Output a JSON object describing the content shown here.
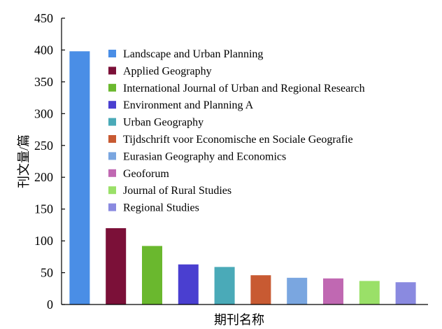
{
  "chart_data": {
    "type": "bar",
    "xlabel": "期刊名称",
    "ylabel": "刊文量/篇",
    "ylim": [
      0,
      450
    ],
    "yticks": [
      0,
      50,
      100,
      150,
      200,
      250,
      300,
      350,
      400,
      450
    ],
    "grid": false,
    "legend_position": "top-right",
    "categories": [
      "Landscape and Urban Planning",
      "Applied Geography",
      "International Journal of Urban and Regional Research",
      "Environment and Planning A",
      "Urban Geography",
      "Tijdschrift voor Economische en Sociale Geografie",
      "Eurasian Geography and Economics",
      "Geoforum",
      "Journal of Rural Studies",
      "Regional Studies"
    ],
    "values": [
      398,
      120,
      92,
      63,
      59,
      46,
      42,
      41,
      37,
      35
    ],
    "colors": [
      "#4a8ee6",
      "#7b1038",
      "#6ab82e",
      "#4a3fd0",
      "#4aaab8",
      "#c85a32",
      "#7aa6e0",
      "#c068b2",
      "#9ae068",
      "#8a8ae0"
    ]
  }
}
